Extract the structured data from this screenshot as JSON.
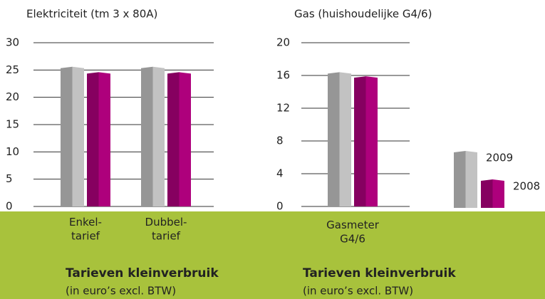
{
  "chart_data": [
    {
      "type": "bar",
      "title": "Elektriciteit (tm 3 x 80A)",
      "categories": [
        "Enkel-\ntarief",
        "Dubbel-\ntarief"
      ],
      "series": [
        {
          "name": "2009",
          "color": "#b0b0b0",
          "values": [
            25.6,
            25.6
          ]
        },
        {
          "name": "2008",
          "color": "#9e0071",
          "values": [
            24.6,
            24.6
          ]
        }
      ],
      "ylim": [
        0,
        30
      ],
      "yticks": [
        0,
        5,
        10,
        15,
        20,
        25,
        30
      ],
      "grid": true,
      "caption": "Tarieven kleinverbruik",
      "caption_note": "(in euro’s excl. BTW)"
    },
    {
      "type": "bar",
      "title": "Gas (huishoudelijke G4/6)",
      "categories": [
        "Gasmeter\nG4/6"
      ],
      "series": [
        {
          "name": "2009",
          "color": "#b0b0b0",
          "values": [
            16.4
          ]
        },
        {
          "name": "2008",
          "color": "#9e0071",
          "values": [
            15.9
          ]
        }
      ],
      "ylim": [
        0,
        20
      ],
      "yticks": [
        0,
        4,
        8,
        12,
        16,
        20
      ],
      "grid": true,
      "legend": "right",
      "caption": "Tarieven kleinverbruik",
      "caption_note": "(in euro’s excl. BTW)"
    }
  ]
}
